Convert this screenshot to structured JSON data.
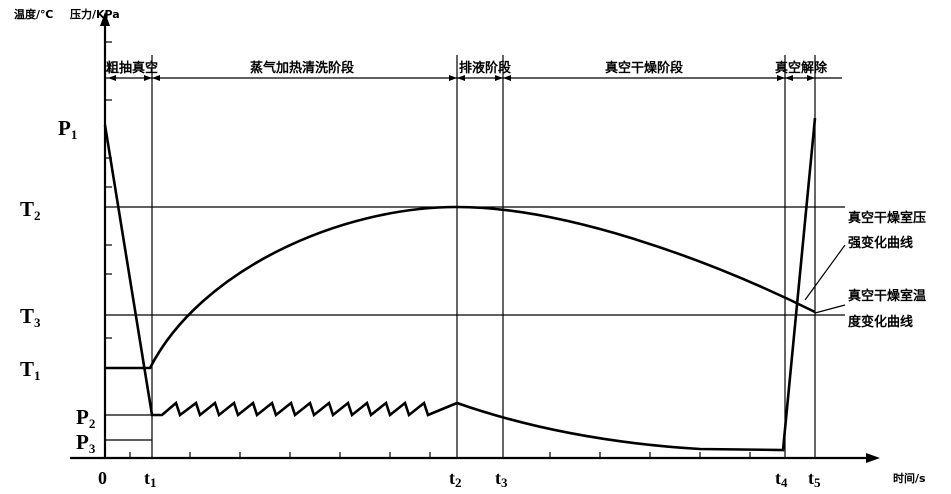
{
  "y_axis": {
    "title_temperature": "温度/℃",
    "title_pressure": "压力/KPa",
    "labels": {
      "P1": {
        "main": "P",
        "sub": "1"
      },
      "T2": {
        "main": "T",
        "sub": "2"
      },
      "T3": {
        "main": "T",
        "sub": "3"
      },
      "T1": {
        "main": "T",
        "sub": "1"
      },
      "P2": {
        "main": "P",
        "sub": "2"
      },
      "P3": {
        "main": "P",
        "sub": "3"
      }
    }
  },
  "x_axis": {
    "title": "时间/s",
    "labels": {
      "origin": "0",
      "t1": {
        "main": "t",
        "sub": "1"
      },
      "t2": {
        "main": "t",
        "sub": "2"
      },
      "t3": {
        "main": "t",
        "sub": "3"
      },
      "t4": {
        "main": "t",
        "sub": "4"
      },
      "t5": {
        "main": "t",
        "sub": "5"
      }
    }
  },
  "stages": {
    "rough_vacuum": "粗抽真空",
    "steam_heating_cleaning": "蒸气加热清洗阶段",
    "drainage": "排液阶段",
    "vacuum_drying": "真空干燥阶段",
    "vacuum_release": "真空解除"
  },
  "annotations": {
    "pressure_curve": {
      "line1": "真空干燥室压",
      "line2": "强变化曲线"
    },
    "temperature_curve": {
      "line1": "真空干燥室温",
      "line2": "度变化曲线"
    }
  }
}
